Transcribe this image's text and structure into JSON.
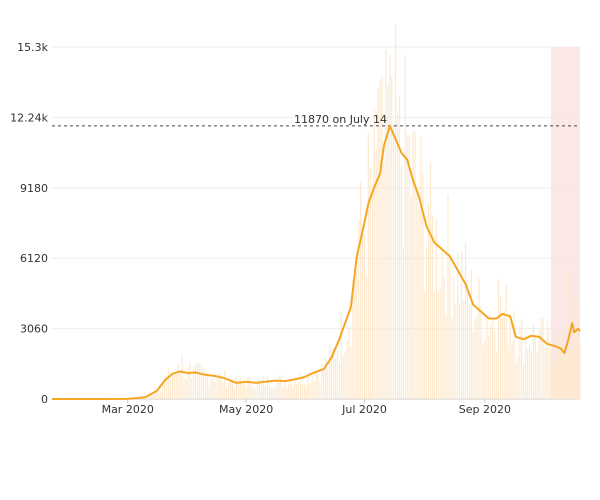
{
  "chart_data": {
    "type": "bar",
    "overlay_type": "line",
    "x_range": [
      "2020-01-22",
      "2020-10-20"
    ],
    "y_range": [
      0,
      15300
    ],
    "y_ticks": [
      {
        "value": 0,
        "label": "0"
      },
      {
        "value": 3060,
        "label": "3060"
      },
      {
        "value": 6120,
        "label": "6120"
      },
      {
        "value": 9180,
        "label": "9180"
      },
      {
        "value": 12240,
        "label": "12.24k"
      },
      {
        "value": 15300,
        "label": "15.3k"
      }
    ],
    "x_ticks": [
      {
        "date": "2020-03-01",
        "label": "Mar 2020"
      },
      {
        "date": "2020-05-01",
        "label": "May 2020"
      },
      {
        "date": "2020-07-01",
        "label": "Jul 2020"
      },
      {
        "date": "2020-09-01",
        "label": "Sep 2020"
      }
    ],
    "reference_line": {
      "value": 11870,
      "label": "11870 on July 14"
    },
    "highlight_region": {
      "start": "2020-10-05",
      "end": "2020-10-20"
    },
    "gridlines": true,
    "colors": {
      "line": "#f5a623",
      "bars": "#fde9cf",
      "highlight": "#fbe3e3",
      "grid": "#eeeeee",
      "reference": "#444444"
    },
    "line_series": [
      [
        "2020-01-22",
        0
      ],
      [
        "2020-02-15",
        0
      ],
      [
        "2020-03-01",
        5
      ],
      [
        "2020-03-10",
        80
      ],
      [
        "2020-03-16",
        350
      ],
      [
        "2020-03-20",
        800
      ],
      [
        "2020-03-24",
        1100
      ],
      [
        "2020-03-28",
        1200
      ],
      [
        "2020-04-01",
        1130
      ],
      [
        "2020-04-05",
        1150
      ],
      [
        "2020-04-10",
        1050
      ],
      [
        "2020-04-15",
        1000
      ],
      [
        "2020-04-20",
        900
      ],
      [
        "2020-04-26",
        700
      ],
      [
        "2020-05-01",
        750
      ],
      [
        "2020-05-06",
        700
      ],
      [
        "2020-05-11",
        750
      ],
      [
        "2020-05-16",
        800
      ],
      [
        "2020-05-21",
        780
      ],
      [
        "2020-05-26",
        850
      ],
      [
        "2020-05-31",
        950
      ],
      [
        "2020-06-05",
        1150
      ],
      [
        "2020-06-10",
        1300
      ],
      [
        "2020-06-14",
        1800
      ],
      [
        "2020-06-18",
        2600
      ],
      [
        "2020-06-21",
        3300
      ],
      [
        "2020-06-24",
        4000
      ],
      [
        "2020-06-27",
        6200
      ],
      [
        "2020-06-30",
        7300
      ],
      [
        "2020-07-03",
        8500
      ],
      [
        "2020-07-06",
        9200
      ],
      [
        "2020-07-09",
        9800
      ],
      [
        "2020-07-11",
        11000
      ],
      [
        "2020-07-14",
        11870
      ],
      [
        "2020-07-17",
        11300
      ],
      [
        "2020-07-20",
        10700
      ],
      [
        "2020-07-23",
        10400
      ],
      [
        "2020-07-26",
        9500
      ],
      [
        "2020-07-29",
        8800
      ],
      [
        "2020-08-02",
        7500
      ],
      [
        "2020-08-06",
        6800
      ],
      [
        "2020-08-10",
        6500
      ],
      [
        "2020-08-14",
        6200
      ],
      [
        "2020-08-18",
        5600
      ],
      [
        "2020-08-22",
        5000
      ],
      [
        "2020-08-26",
        4100
      ],
      [
        "2020-08-30",
        3800
      ],
      [
        "2020-09-03",
        3500
      ],
      [
        "2020-09-07",
        3500
      ],
      [
        "2020-09-10",
        3700
      ],
      [
        "2020-09-14",
        3600
      ],
      [
        "2020-09-17",
        2700
      ],
      [
        "2020-09-21",
        2600
      ],
      [
        "2020-09-25",
        2750
      ],
      [
        "2020-09-29",
        2700
      ],
      [
        "2020-10-03",
        2400
      ],
      [
        "2020-10-07",
        2300
      ],
      [
        "2020-10-10",
        2200
      ],
      [
        "2020-10-12",
        2000
      ],
      [
        "2020-10-14",
        2600
      ],
      [
        "2020-10-16",
        3300
      ],
      [
        "2020-10-17",
        2900
      ],
      [
        "2020-10-19",
        3050
      ],
      [
        "2020-10-20",
        2950
      ]
    ],
    "bar_peaks": [
      [
        "2020-03-29",
        1900
      ],
      [
        "2020-04-02",
        1600
      ],
      [
        "2020-06-28",
        7800
      ],
      [
        "2020-07-04",
        10000
      ],
      [
        "2020-07-08",
        13500
      ],
      [
        "2020-07-12",
        15200
      ],
      [
        "2020-07-15",
        14000
      ],
      [
        "2020-07-19",
        13200
      ],
      [
        "2020-07-23",
        11500
      ],
      [
        "2020-08-03",
        8500
      ],
      [
        "2020-09-08",
        5200
      ],
      [
        "2020-09-16",
        3800
      ],
      [
        "2020-10-14",
        5500
      ],
      [
        "2020-10-18",
        4300
      ]
    ]
  }
}
